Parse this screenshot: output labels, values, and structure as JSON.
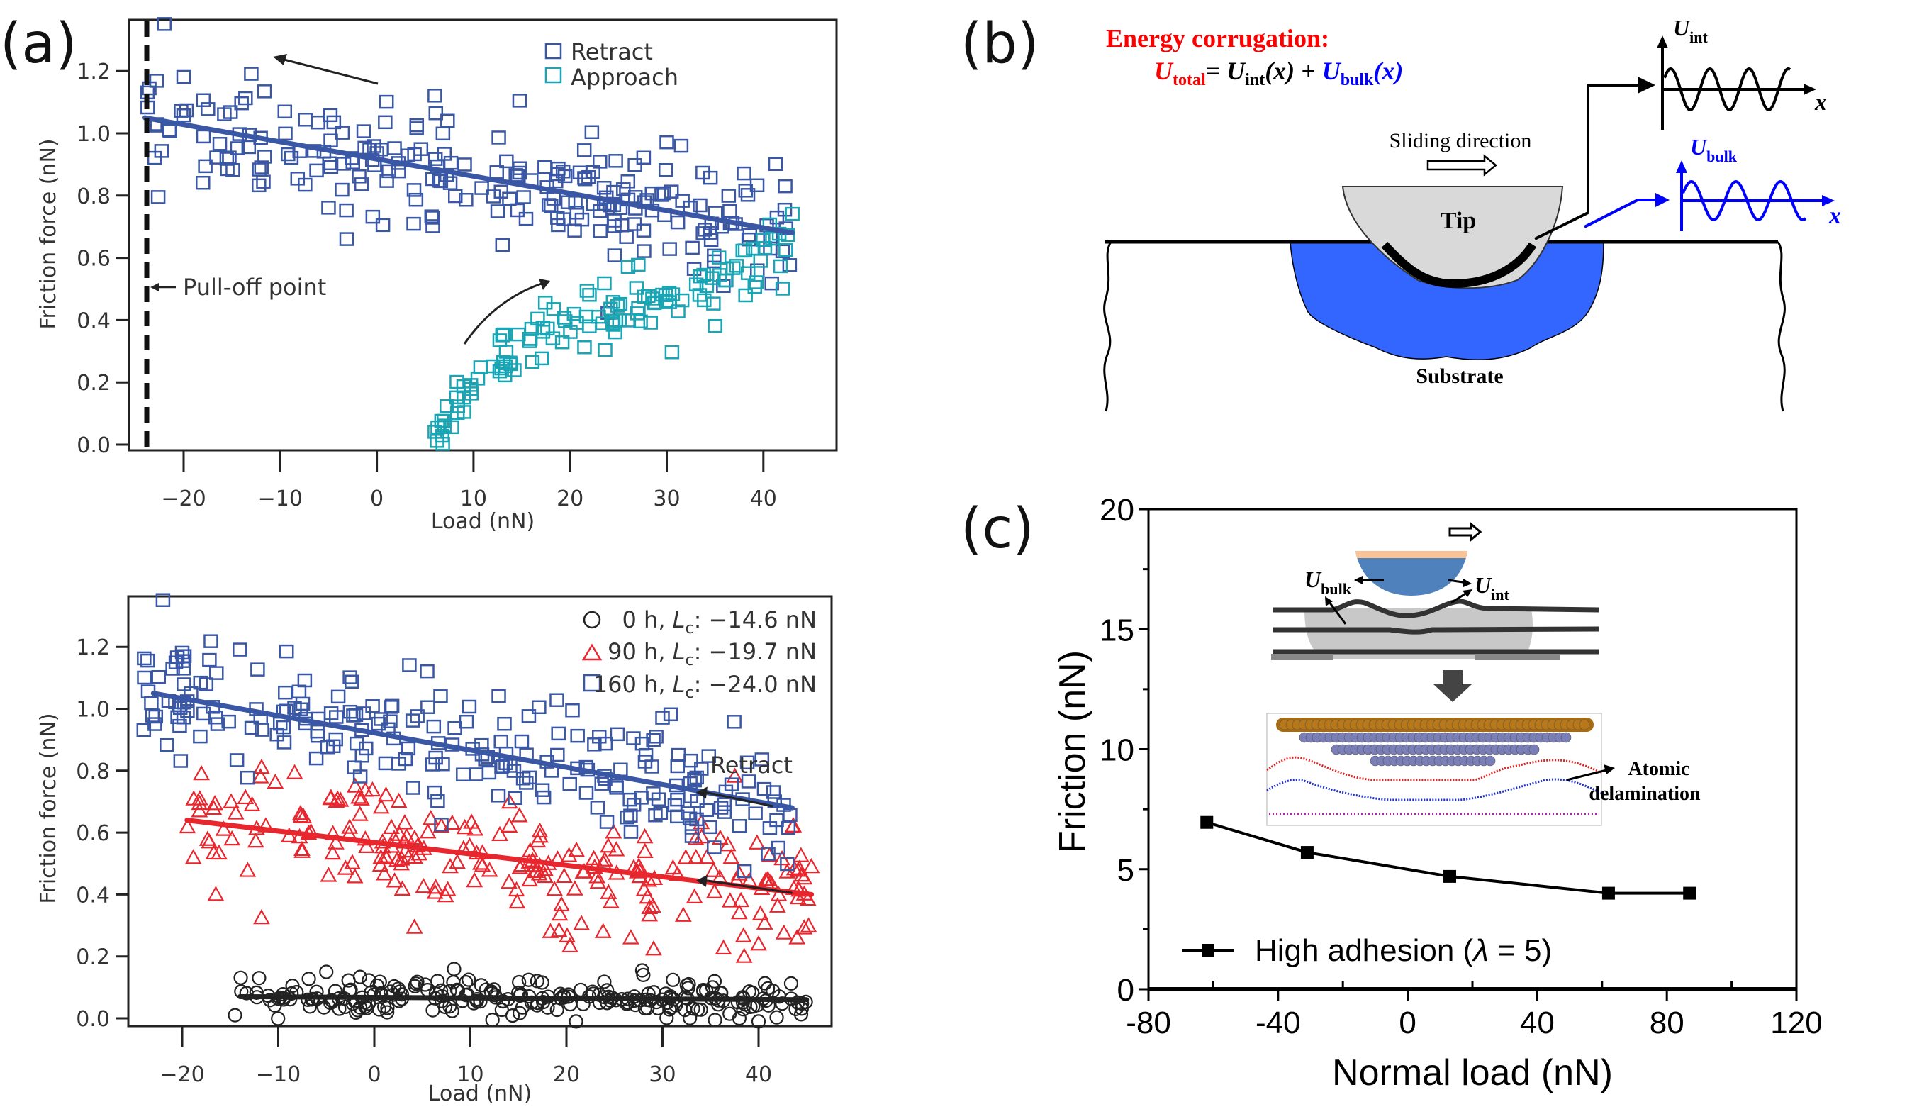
{
  "panels": {
    "a": "(a)",
    "b": "(b)",
    "c": "(c)"
  },
  "chart_data": [
    {
      "id": "a-top",
      "type": "scatter",
      "title": "",
      "xlabel": "Load (nN)",
      "ylabel": "Friction force (nN)",
      "xlim": [
        -25.5,
        48
      ],
      "ylim": [
        -0.02,
        1.37
      ],
      "xticks": [
        -20,
        -10,
        0,
        10,
        20,
        30,
        40
      ],
      "xtick_labels": [
        "−20",
        "−10",
        "0",
        "10",
        "20",
        "30",
        "40"
      ],
      "yticks": [
        0.0,
        0.2,
        0.4,
        0.6,
        0.8,
        1.0,
        1.2
      ],
      "ytick_labels": [
        "0.0",
        "0.2",
        "0.4",
        "0.6",
        "0.8",
        "1.0",
        "1.2"
      ],
      "grid": false,
      "legend_position": "top-right",
      "series": [
        {
          "name": "Retract",
          "marker": "square",
          "color": "#3a57a5",
          "fit_line": {
            "x": [
              -24,
              43
            ],
            "y": [
              1.05,
              0.68
            ]
          },
          "x_range": [
            -24,
            43
          ],
          "scatter_sd": 0.09,
          "n_points": 230,
          "sample_points": [
            [
              -22,
              1.35
            ],
            [
              -23,
              0.92
            ],
            [
              -20,
              1.18
            ],
            [
              -13,
              1.19
            ],
            [
              1,
              1.1
            ],
            [
              6,
              1.12
            ],
            [
              30,
              0.97
            ],
            [
              -18,
              0.84
            ],
            [
              -5,
              0.76
            ],
            [
              13,
              0.64
            ],
            [
              38,
              0.87
            ],
            [
              42,
              0.62
            ]
          ]
        },
        {
          "name": "Approach",
          "marker": "square",
          "color": "#1aa5b5",
          "curve": {
            "x": [
              6,
              10,
              15,
              20,
              25,
              30,
              35,
              40,
              43
            ],
            "y": [
              0.04,
              0.18,
              0.33,
              0.41,
              0.43,
              0.48,
              0.52,
              0.58,
              0.66
            ]
          },
          "x_range": [
            6,
            43
          ],
          "scatter_sd": 0.045,
          "n_points": 120,
          "sample_points": [
            [
              6,
              0.04
            ],
            [
              7,
              0.06
            ],
            [
              9,
              0.15
            ],
            [
              13,
              0.35
            ],
            [
              22,
              0.48
            ],
            [
              26,
              0.57
            ],
            [
              35,
              0.38
            ],
            [
              42,
              0.5
            ],
            [
              43,
              0.74
            ]
          ]
        }
      ],
      "annotations": [
        {
          "text": "Pull-off point",
          "x": -24,
          "y": 0.52
        },
        {
          "text": "dashed vertical line",
          "x": -24
        },
        {
          "text": "retract-arrow",
          "from": [
            -2,
            1.17
          ],
          "to": [
            -11,
            1.23
          ]
        },
        {
          "text": "approach-arrow",
          "from": [
            13,
            0.34
          ],
          "to": [
            19,
            0.51
          ]
        }
      ]
    },
    {
      "id": "a-bottom",
      "type": "scatter",
      "title": "",
      "xlabel": "Load (nN)",
      "ylabel": "Friction force (nN)",
      "xlim": [
        -25,
        48.5
      ],
      "ylim": [
        -0.02,
        1.37
      ],
      "xticks": [
        -20,
        -10,
        0,
        10,
        20,
        30,
        40
      ],
      "xtick_labels": [
        "−20",
        "−10",
        "0",
        "10",
        "20",
        "30",
        "40"
      ],
      "yticks": [
        0.0,
        0.2,
        0.4,
        0.6,
        0.8,
        1.0,
        1.2
      ],
      "ytick_labels": [
        "0.0",
        "0.2",
        "0.4",
        "0.6",
        "0.8",
        "1.0",
        "1.2"
      ],
      "grid": false,
      "legend_position": "top-right",
      "series": [
        {
          "name": "0 h, Lc: −14.6 nN",
          "marker": "circle",
          "color": "#222222",
          "fit_line": {
            "x": [
              -14,
              45
            ],
            "y": [
              0.07,
              0.06
            ]
          },
          "x_range": [
            -14.5,
            45
          ],
          "scatter_sd": 0.03,
          "n_points": 230,
          "sample_points": [
            [
              -14.5,
              0.01
            ],
            [
              -5,
              0.15
            ],
            [
              -12,
              0.13
            ],
            [
              28,
              0.14
            ],
            [
              21,
              -0.01
            ],
            [
              40,
              -0.01
            ],
            [
              38,
              0.0
            ]
          ]
        },
        {
          "name": "90 h, Lc: −19.7 nN",
          "marker": "triangle",
          "color": "#e8262e",
          "fit_line": {
            "x": [
              -19.5,
              45.5
            ],
            "y": [
              0.64,
              0.4
            ]
          },
          "x_range": [
            -19.5,
            45.5
          ],
          "scatter_sd": 0.1,
          "n_points": 230,
          "sample_points": [
            [
              -18,
              0.79
            ],
            [
              -16.5,
              0.4
            ],
            [
              38.5,
              0.2
            ],
            [
              40,
              0.24
            ],
            [
              44,
              0.26
            ],
            [
              45.5,
              0.49
            ],
            [
              -2,
              0.75
            ]
          ]
        },
        {
          "name": "160 h, Lc: −24.0 nN",
          "marker": "square",
          "color": "#3a57a5",
          "fit_line": {
            "x": [
              -23,
              43.5
            ],
            "y": [
              1.05,
              0.68
            ]
          },
          "x_range": [
            -24,
            43.5
          ],
          "scatter_sd": 0.09,
          "n_points": 230,
          "sample_points": [
            [
              -22,
              1.35
            ],
            [
              -20,
              1.18
            ],
            [
              -14,
              1.19
            ],
            [
              5.5,
              1.12
            ],
            [
              30,
              0.97
            ],
            [
              41,
              0.53
            ],
            [
              -24,
              0.93
            ]
          ]
        }
      ],
      "legend_entries": [
        {
          "time": "0 h, ",
          "var": "L",
          "sub": "c",
          "value": ": −14.6 nN"
        },
        {
          "time": "90 h, ",
          "var": "L",
          "sub": "c",
          "value": ": −19.7 nN"
        },
        {
          "time": "160 h, ",
          "var": "L",
          "sub": "c",
          "value": ": −24.0 nN"
        }
      ],
      "annotations": [
        {
          "text": "Retract",
          "x": 36,
          "y": 0.85
        }
      ]
    },
    {
      "id": "c",
      "type": "line",
      "title": "",
      "xlabel": "Normal load (nN)",
      "ylabel": "Friction (nN)",
      "xlim": [
        -80,
        120
      ],
      "ylim": [
        0,
        20
      ],
      "xticks": [
        -80,
        -40,
        0,
        40,
        80,
        120
      ],
      "xtick_labels": [
        "-80",
        "-40",
        "0",
        "40",
        "80",
        "120"
      ],
      "yticks": [
        0,
        5,
        10,
        15,
        20
      ],
      "ytick_labels": [
        "0",
        "5",
        "10",
        "15",
        "20"
      ],
      "grid": false,
      "legend_position": "bottom-left",
      "series": [
        {
          "name": "High adhesion (λ = 5)",
          "marker": "square",
          "color": "#000000",
          "x": [
            -62,
            -31,
            13,
            62,
            87
          ],
          "y": [
            6.95,
            5.7,
            4.7,
            4.0,
            4.0
          ]
        }
      ]
    }
  ],
  "legend_a_top": {
    "retract": "Retract",
    "approach": "Approach"
  },
  "annot_a": {
    "pulloff": "Pull-off point",
    "retract": "Retract"
  },
  "legend_c": {
    "label": "High adhesion (",
    "lambda": "λ",
    "rest": " = 5)"
  },
  "diagram_b": {
    "title": "Energy corrugation:",
    "eq_total_U": "U",
    "eq_total_sub": "total",
    "eq_eq": "= ",
    "eq_int_U": "U",
    "eq_int_sub": "int",
    "eq_int_arg": "(x) + ",
    "eq_bulk_U": "U",
    "eq_bulk_sub": "bulk",
    "eq_bulk_arg": "(x)",
    "sliding": "Sliding direction",
    "tip": "Tip",
    "substrate": "Substrate",
    "uint_label_U": "U",
    "uint_label_sub": "int",
    "ubulk_label_U": "U",
    "ubulk_label_sub": "bulk",
    "x_axis": "x",
    "colors": {
      "total": "#ff0000",
      "bulk": "#0000ff",
      "bulk_region": "#3366ff",
      "tip": "#d9d9d9"
    }
  },
  "inset_c": {
    "ubulk_U": "U",
    "ubulk_sub": "bulk",
    "uint_U": "U",
    "uint_sub": "int",
    "atomic": "Atomic",
    "delamination": "delamination",
    "colors": {
      "tip_top": "#f8c396",
      "tip": "#4f81bd",
      "gold_layer": "#a86b10",
      "atoms": "#7a7fb8",
      "red_layer": "#dd2222",
      "blue_layer": "#2233cc",
      "purple_layer": "#a030a0"
    }
  }
}
